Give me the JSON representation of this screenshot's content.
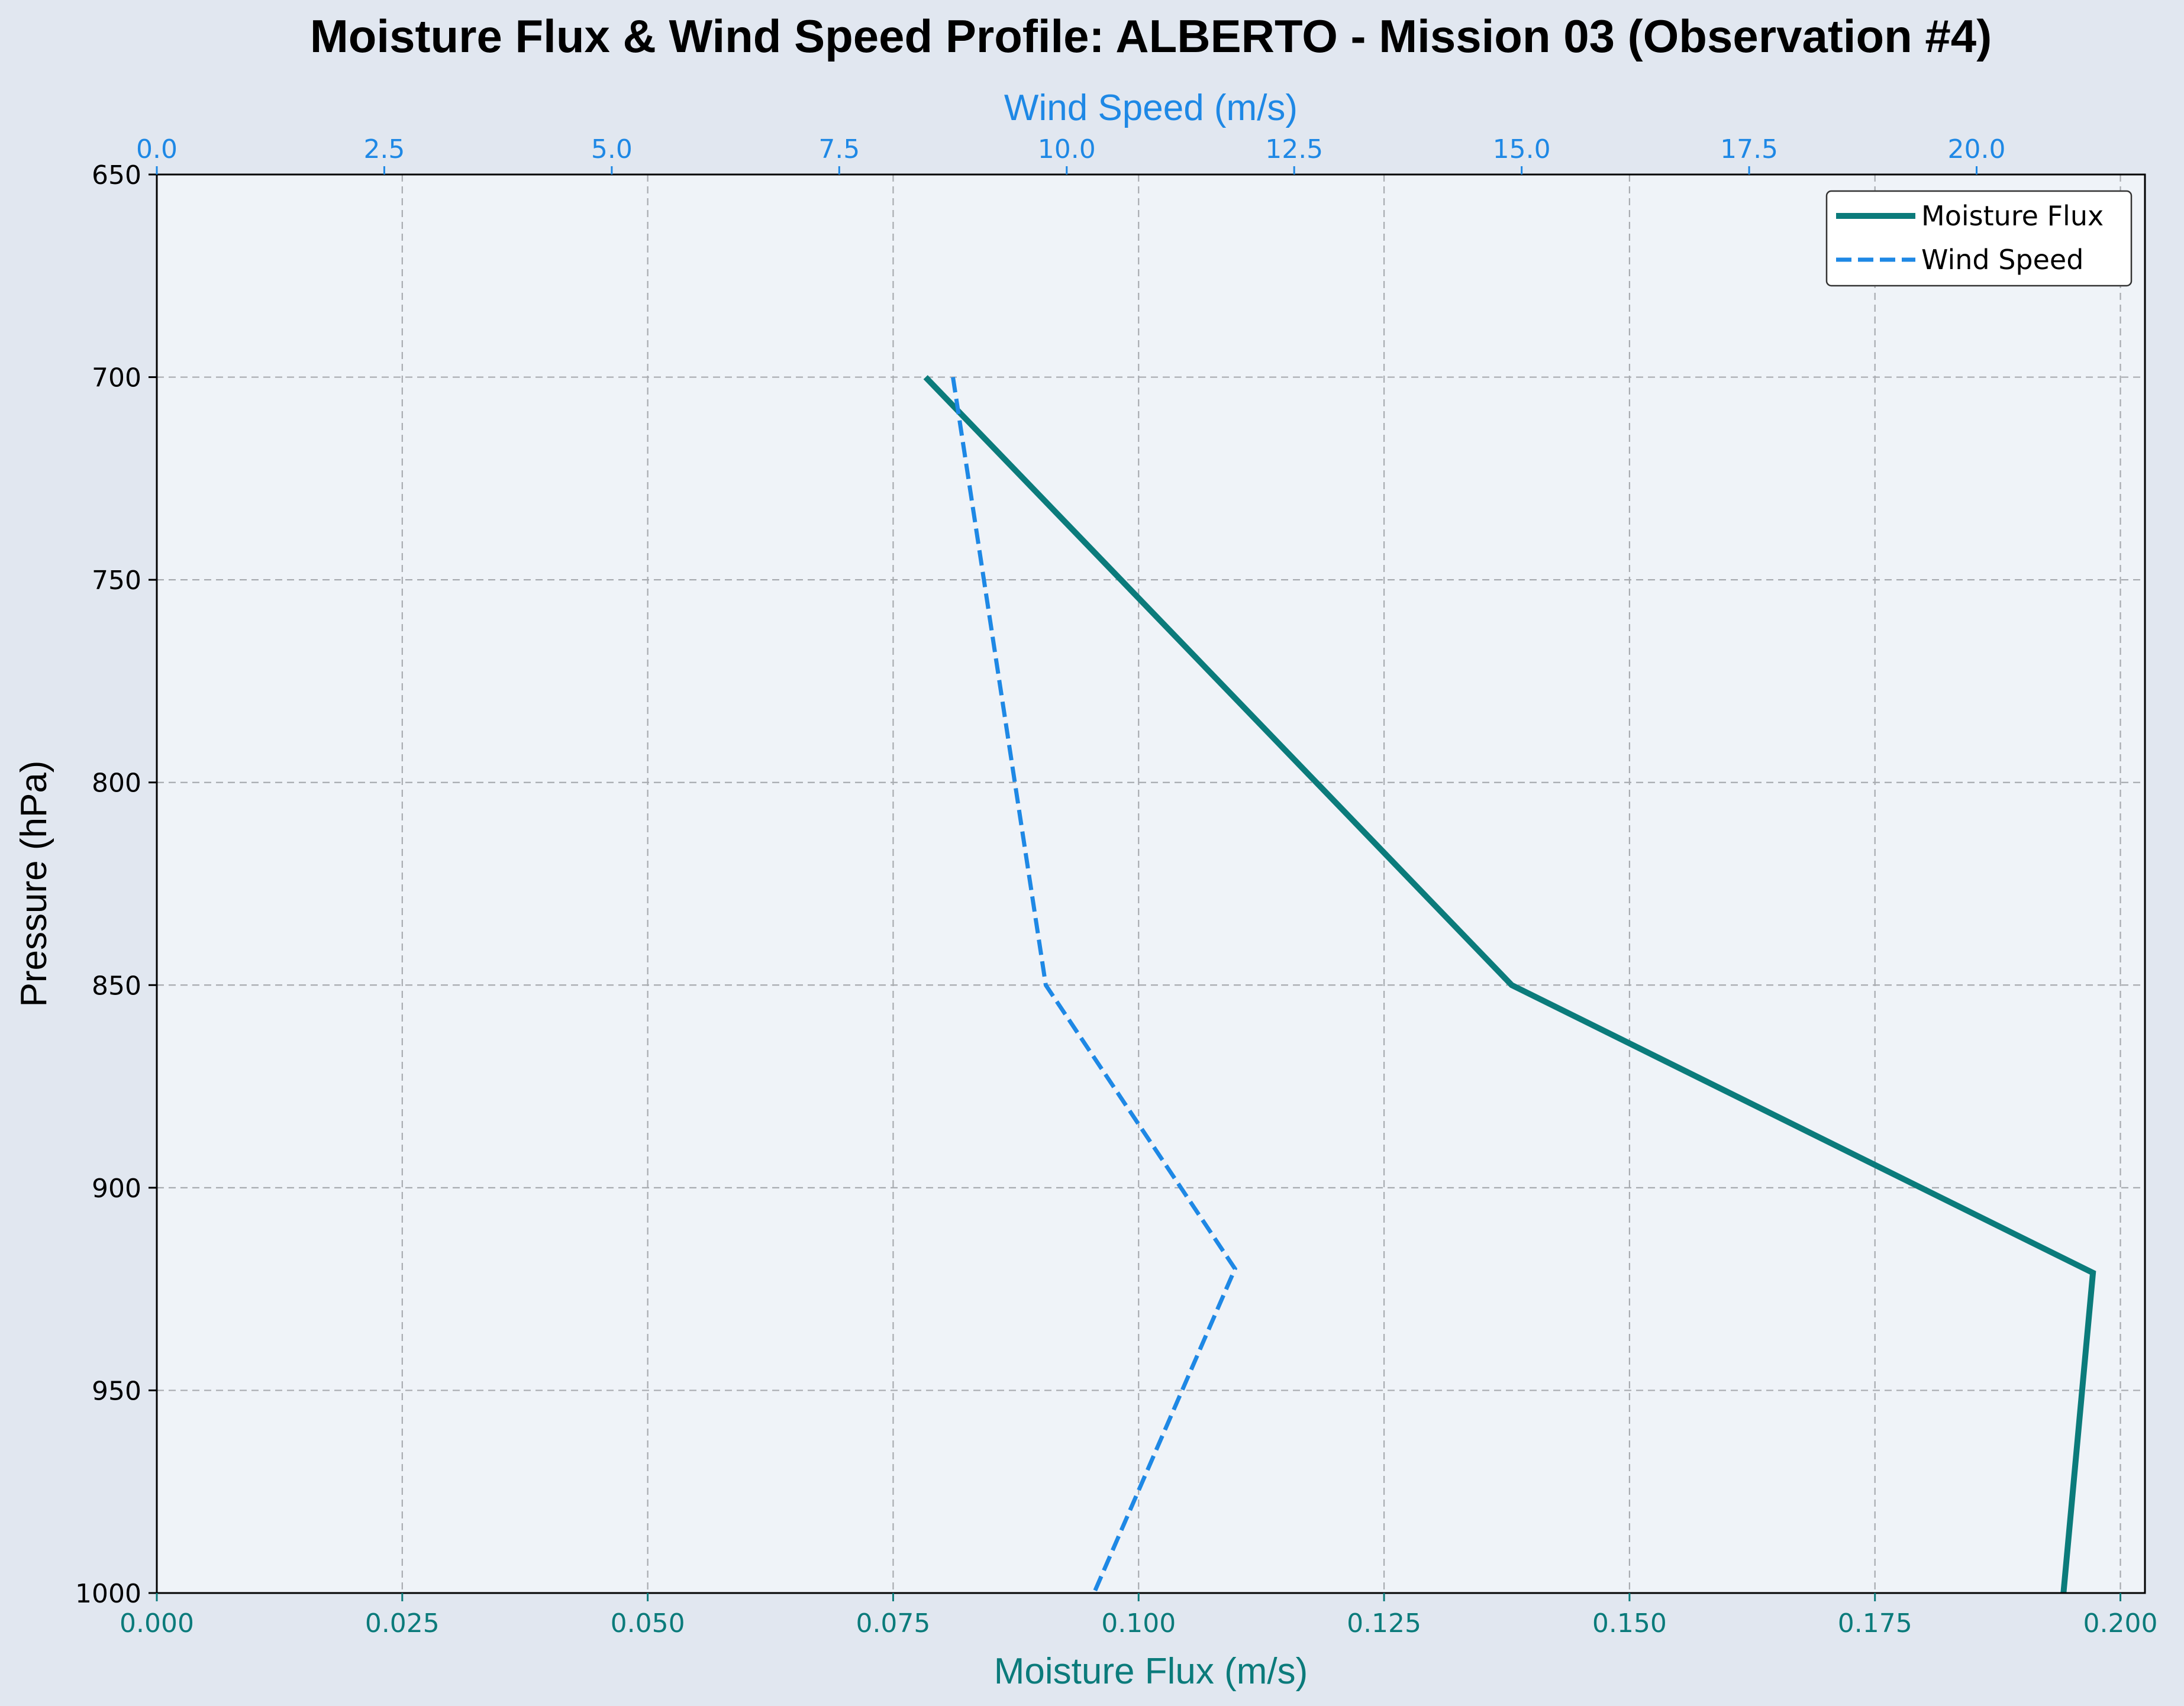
{
  "chart_data": {
    "type": "line",
    "title": "Moisture Flux & Wind Speed Profile: ALBERTO - Mission 03 (Observation #4)",
    "ylabel": "Pressure (hPa)",
    "xlabel_bottom": "Moisture Flux (m/s)",
    "xlabel_top": "Wind Speed (m/s)",
    "ylim": [
      1000,
      650
    ],
    "y_inverted": true,
    "yticks": [
      "650",
      "700",
      "750",
      "800",
      "850",
      "900",
      "950",
      "1000"
    ],
    "xlim_bottom": [
      0,
      0.2025
    ],
    "xticks_bottom": [
      "0.000",
      "0.025",
      "0.050",
      "0.075",
      "0.100",
      "0.125",
      "0.150",
      "0.175",
      "0.200"
    ],
    "xlim_top": [
      0,
      21.85
    ],
    "xticks_top": [
      "0.0",
      "2.5",
      "5.0",
      "7.5",
      "10.0",
      "12.5",
      "15.0",
      "17.5",
      "20.0"
    ],
    "grid": true,
    "legend_position": "top-right",
    "series": [
      {
        "name": "Moisture Flux",
        "axis": "bottom",
        "color": "#0b7b7b",
        "style": "solid",
        "points": [
          {
            "x": 0.0783,
            "y": 700
          },
          {
            "x": 0.138,
            "y": 850
          },
          {
            "x": 0.1972,
            "y": 921
          },
          {
            "x": 0.1942,
            "y": 1000
          }
        ]
      },
      {
        "name": "Wind Speed",
        "axis": "top",
        "color": "#1e88e5",
        "style": "dashed",
        "points": [
          {
            "x": 8.75,
            "y": 700
          },
          {
            "x": 9.77,
            "y": 850
          },
          {
            "x": 11.85,
            "y": 920
          },
          {
            "x": 10.3,
            "y": 1000
          }
        ]
      }
    ]
  },
  "colors": {
    "background": "#e1e7f0",
    "plot_background": "#eff3f8",
    "bottom_axis": "#0b7b7b",
    "top_axis": "#1e88e5"
  }
}
